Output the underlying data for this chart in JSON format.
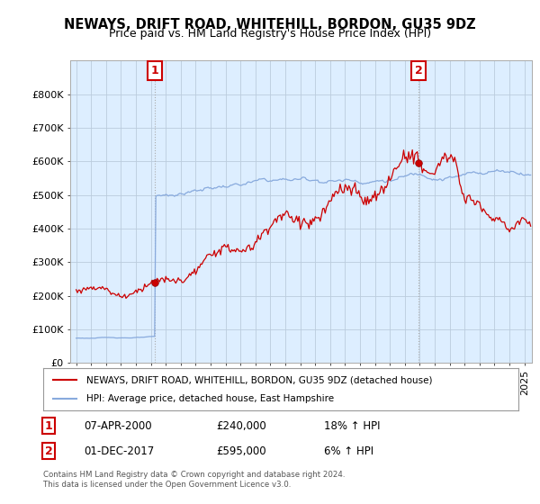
{
  "title": "NEWAYS, DRIFT ROAD, WHITEHILL, BORDON, GU35 9DZ",
  "subtitle": "Price paid vs. HM Land Registry's House Price Index (HPI)",
  "ylim": [
    0,
    900000
  ],
  "yticks": [
    0,
    100000,
    200000,
    300000,
    400000,
    500000,
    600000,
    700000,
    800000
  ],
  "sale1_date": 2000.27,
  "sale1_price": 240000,
  "sale1_label": "1",
  "sale2_date": 2017.92,
  "sale2_price": 595000,
  "sale2_label": "2",
  "legend_line1": "NEWAYS, DRIFT ROAD, WHITEHILL, BORDON, GU35 9DZ (detached house)",
  "legend_line2": "HPI: Average price, detached house, East Hampshire",
  "annotation1_date": "07-APR-2000",
  "annotation1_price": "£240,000",
  "annotation1_pct": "18% ↑ HPI",
  "annotation2_date": "01-DEC-2017",
  "annotation2_price": "£595,000",
  "annotation2_pct": "6% ↑ HPI",
  "footer": "Contains HM Land Registry data © Crown copyright and database right 2024.\nThis data is licensed under the Open Government Licence v3.0.",
  "line_color_price": "#cc0000",
  "line_color_hpi": "#88aadd",
  "background_color": "#ffffff",
  "plot_bg_color": "#ddeeff",
  "grid_color": "#bbccdd"
}
